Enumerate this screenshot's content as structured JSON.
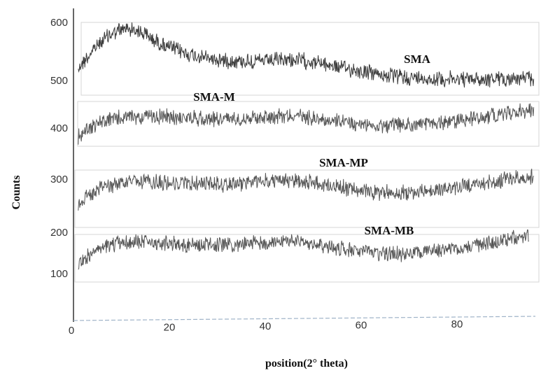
{
  "chart_data": {
    "type": "line",
    "title": "",
    "xlabel": "position(2° theta)",
    "ylabel": "Counts",
    "xlim": [
      0,
      96
    ],
    "ylim": [
      0,
      650
    ],
    "x_ticks": [
      0,
      20,
      40,
      60,
      80
    ],
    "y_ticks": [
      100,
      200,
      300,
      400,
      500,
      600
    ],
    "grid": false,
    "legend": "inline labels",
    "series": [
      {
        "name": "SMA",
        "color": "#1a1a1a",
        "x": [
          1,
          3,
          5,
          7,
          9,
          11,
          13,
          15,
          17,
          20,
          25,
          30,
          35,
          40,
          45,
          50,
          55,
          60,
          65,
          70,
          75,
          80,
          85,
          90,
          96
        ],
        "values": [
          510,
          532,
          555,
          572,
          582,
          588,
          586,
          576,
          564,
          550,
          534,
          526,
          523,
          523,
          526,
          522,
          512,
          503,
          495,
          490,
          488,
          487,
          487,
          488,
          489
        ]
      },
      {
        "name": "SMA-M",
        "color": "#3a3a3a",
        "x": [
          1,
          3,
          6,
          9,
          12,
          15,
          20,
          25,
          30,
          35,
          40,
          45,
          50,
          55,
          60,
          65,
          70,
          75,
          80,
          85,
          90,
          96
        ],
        "values": [
          372,
          390,
          403,
          410,
          412,
          413,
          412,
          410,
          409,
          410,
          413,
          416,
          411,
          403,
          397,
          395,
          396,
          399,
          405,
          412,
          419,
          427
        ]
      },
      {
        "name": "SMA-MP",
        "color": "#3a3a3a",
        "x": [
          1,
          3,
          6,
          9,
          12,
          15,
          20,
          25,
          30,
          35,
          40,
          45,
          50,
          55,
          60,
          65,
          70,
          75,
          80,
          85,
          90,
          96
        ],
        "values": [
          240,
          256,
          272,
          280,
          283,
          283,
          281,
          280,
          279,
          281,
          284,
          286,
          282,
          274,
          265,
          262,
          262,
          266,
          272,
          280,
          287,
          294
        ]
      },
      {
        "name": "SMA-MB",
        "color": "#3a3a3a",
        "x": [
          1,
          3,
          6,
          9,
          12,
          15,
          20,
          25,
          30,
          35,
          40,
          45,
          50,
          55,
          60,
          65,
          70,
          75,
          80,
          85,
          90,
          95
        ],
        "values": [
          120,
          136,
          151,
          160,
          164,
          164,
          162,
          159,
          157,
          159,
          163,
          166,
          161,
          152,
          144,
          140,
          141,
          145,
          152,
          160,
          168,
          175
        ]
      }
    ]
  }
}
